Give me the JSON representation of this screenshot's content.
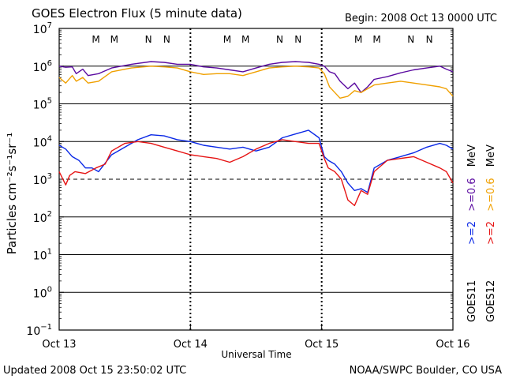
{
  "header": {
    "title": "GOES Electron Flux (5 minute data)",
    "begin": "Begin: 2008 Oct 13 0000 UTC"
  },
  "footer": {
    "updated": "Updated 2008 Oct 15 23:50:02 UTC",
    "source": "NOAA/SWPC Boulder, CO USA"
  },
  "colors": {
    "goes11_high": "#5a0aa0",
    "goes12_high": "#f0a000",
    "goes11_low": "#0a28e6",
    "goes12_low": "#e61414",
    "noon_marker": "#e61414",
    "midnight_marker": "#0a28e6"
  },
  "legend": {
    "line1": ">=2",
    "line1_alt": ">=0.6",
    "line2": ">=2",
    "line2_alt": ">=0.6",
    "unit": "MeV",
    "sat1": "GOES11",
    "sat2": "GOES12"
  },
  "markers": [
    {
      "label": "M",
      "day": 0.28,
      "color": "noon_marker"
    },
    {
      "label": "M",
      "day": 0.42,
      "color": "midnight_marker"
    },
    {
      "label": "N",
      "day": 0.68,
      "color": "noon_marker"
    },
    {
      "label": "N",
      "day": 0.82,
      "color": "midnight_marker"
    },
    {
      "label": "M",
      "day": 1.28,
      "color": "noon_marker"
    },
    {
      "label": "M",
      "day": 1.42,
      "color": "midnight_marker"
    },
    {
      "label": "N",
      "day": 1.68,
      "color": "noon_marker"
    },
    {
      "label": "N",
      "day": 1.82,
      "color": "midnight_marker"
    },
    {
      "label": "M",
      "day": 2.28,
      "color": "noon_marker"
    },
    {
      "label": "M",
      "day": 2.42,
      "color": "midnight_marker"
    },
    {
      "label": "N",
      "day": 2.68,
      "color": "noon_marker"
    },
    {
      "label": "N",
      "day": 2.82,
      "color": "midnight_marker"
    }
  ],
  "chart_data": {
    "type": "line",
    "title": "GOES Electron Flux (5 minute data)",
    "xlabel": "Universal Time",
    "ylabel": "Particles cm⁻²s⁻¹sr⁻¹",
    "x_tick_labels": [
      "Oct 13",
      "Oct 14",
      "Oct 15",
      "Oct 16"
    ],
    "xlim": [
      0,
      3
    ],
    "ylim": [
      -1,
      7
    ],
    "y_scale": "log",
    "y_tick_exponents": [
      7,
      6,
      5,
      4,
      3,
      2,
      1,
      0,
      -1
    ],
    "y_tick_base": "10",
    "reference_line": 3,
    "grid": "horizontal decades",
    "series": [
      {
        "name": "GOES11 >=0.6 MeV",
        "color": "goes11_high",
        "x": [
          0.0,
          0.05,
          0.1,
          0.13,
          0.18,
          0.22,
          0.3,
          0.4,
          0.55,
          0.7,
          0.8,
          0.9,
          1.0,
          1.1,
          1.2,
          1.3,
          1.4,
          1.5,
          1.6,
          1.7,
          1.8,
          1.9,
          1.98,
          2.02,
          2.06,
          2.1,
          2.14,
          2.2,
          2.25,
          2.3,
          2.35,
          2.4,
          2.5,
          2.6,
          2.7,
          2.8,
          2.9,
          2.95,
          3.0
        ],
        "y": [
          6.0,
          5.97,
          5.98,
          5.8,
          5.92,
          5.75,
          5.8,
          5.95,
          6.05,
          6.12,
          6.1,
          6.05,
          6.05,
          5.98,
          5.95,
          5.9,
          5.85,
          5.95,
          6.05,
          6.1,
          6.12,
          6.1,
          6.05,
          6.0,
          5.85,
          5.8,
          5.6,
          5.4,
          5.55,
          5.3,
          5.45,
          5.65,
          5.72,
          5.82,
          5.9,
          5.95,
          6.0,
          5.92,
          5.85
        ]
      },
      {
        "name": "GOES12 >=0.6 MeV",
        "color": "goes12_high",
        "x": [
          0.0,
          0.05,
          0.1,
          0.13,
          0.18,
          0.22,
          0.3,
          0.4,
          0.55,
          0.7,
          0.8,
          0.9,
          1.0,
          1.1,
          1.2,
          1.3,
          1.4,
          1.5,
          1.6,
          1.7,
          1.8,
          1.9,
          1.98,
          2.02,
          2.06,
          2.1,
          2.14,
          2.2,
          2.25,
          2.3,
          2.35,
          2.4,
          2.5,
          2.6,
          2.7,
          2.8,
          2.9,
          2.95,
          3.0
        ],
        "y": [
          5.7,
          5.55,
          5.75,
          5.6,
          5.7,
          5.55,
          5.6,
          5.85,
          5.95,
          6.0,
          5.98,
          5.95,
          5.85,
          5.78,
          5.8,
          5.8,
          5.75,
          5.85,
          5.95,
          5.98,
          6.0,
          5.98,
          5.95,
          5.8,
          5.45,
          5.3,
          5.15,
          5.2,
          5.35,
          5.3,
          5.4,
          5.5,
          5.55,
          5.6,
          5.55,
          5.5,
          5.45,
          5.4,
          5.2
        ]
      },
      {
        "name": "GOES11 >=2 MeV",
        "color": "goes11_low",
        "x": [
          0.0,
          0.05,
          0.1,
          0.15,
          0.2,
          0.25,
          0.3,
          0.4,
          0.5,
          0.6,
          0.7,
          0.8,
          0.9,
          1.0,
          1.1,
          1.2,
          1.3,
          1.4,
          1.5,
          1.6,
          1.7,
          1.8,
          1.9,
          1.98,
          2.02,
          2.05,
          2.1,
          2.15,
          2.2,
          2.25,
          2.3,
          2.35,
          2.4,
          2.5,
          2.6,
          2.7,
          2.8,
          2.9,
          2.95,
          3.0
        ],
        "y": [
          3.9,
          3.8,
          3.6,
          3.5,
          3.3,
          3.3,
          3.2,
          3.65,
          3.85,
          4.05,
          4.18,
          4.15,
          4.05,
          4.0,
          3.9,
          3.85,
          3.8,
          3.85,
          3.75,
          3.85,
          4.1,
          4.2,
          4.3,
          4.1,
          3.6,
          3.5,
          3.4,
          3.2,
          2.9,
          2.7,
          2.75,
          2.65,
          3.3,
          3.5,
          3.6,
          3.7,
          3.85,
          3.95,
          3.9,
          3.8
        ]
      },
      {
        "name": "GOES12 >=2 MeV",
        "color": "goes12_low",
        "x": [
          0.0,
          0.05,
          0.08,
          0.12,
          0.2,
          0.28,
          0.35,
          0.4,
          0.5,
          0.6,
          0.7,
          0.8,
          0.9,
          1.0,
          1.1,
          1.2,
          1.3,
          1.4,
          1.5,
          1.6,
          1.7,
          1.8,
          1.9,
          1.98,
          2.02,
          2.05,
          2.1,
          2.15,
          2.2,
          2.25,
          2.3,
          2.35,
          2.4,
          2.5,
          2.6,
          2.7,
          2.8,
          2.9,
          2.95,
          3.0
        ],
        "y": [
          3.2,
          2.85,
          3.1,
          3.2,
          3.15,
          3.3,
          3.4,
          3.75,
          3.95,
          4.0,
          3.95,
          3.85,
          3.75,
          3.65,
          3.6,
          3.55,
          3.45,
          3.6,
          3.8,
          3.95,
          4.05,
          4.0,
          3.95,
          3.95,
          3.55,
          3.3,
          3.2,
          3.0,
          2.45,
          2.3,
          2.7,
          2.6,
          3.2,
          3.5,
          3.55,
          3.6,
          3.45,
          3.3,
          3.2,
          2.9
        ]
      }
    ]
  }
}
